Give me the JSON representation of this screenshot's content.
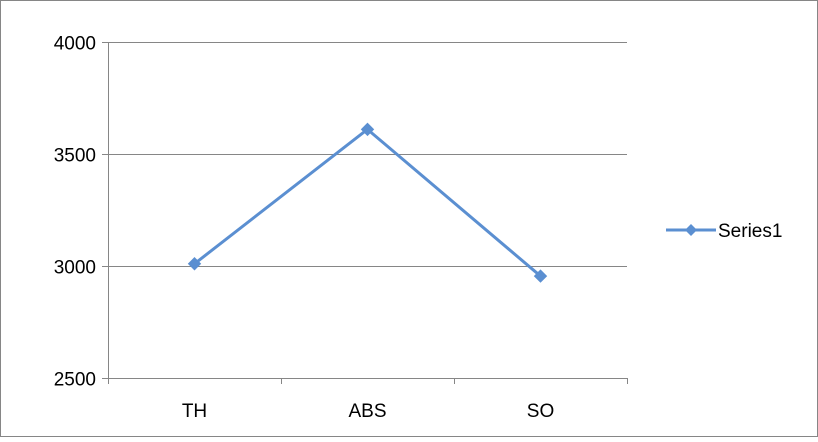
{
  "chart_data": {
    "type": "line",
    "title": "",
    "xlabel": "",
    "ylabel": "",
    "categories": [
      "TH",
      "ABS",
      "SO"
    ],
    "series": [
      {
        "name": "Series1",
        "values": [
          3010,
          3610,
          2955
        ],
        "color": "#5b8fd1",
        "marker": "diamond"
      }
    ],
    "ylim": [
      2500,
      4000
    ],
    "yticks": [
      2500,
      3000,
      3500,
      4000
    ],
    "ytick_labels": [
      "2500",
      "3000",
      "3500",
      "4000"
    ],
    "grid": "horizontal",
    "legend": "right"
  },
  "colors": {
    "series_line": "#5b8fd1",
    "gridline": "#868686",
    "frame": "#868686",
    "background": "#ffffff"
  }
}
